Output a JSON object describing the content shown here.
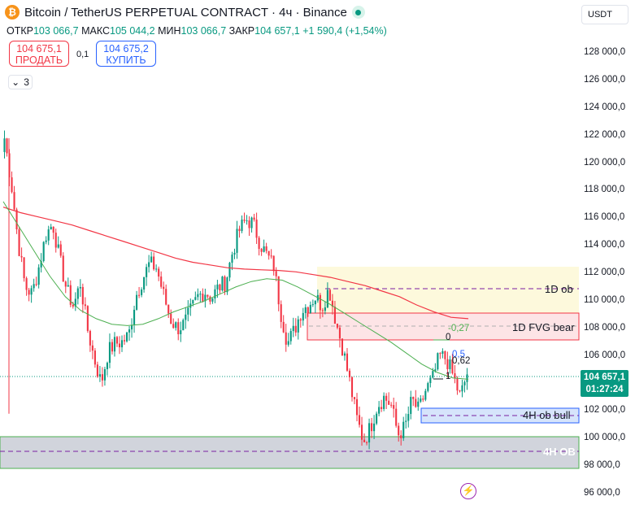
{
  "header": {
    "title": "Bitcoin / TetherUS PERPETUAL CONTRACT · 4ч · Binance",
    "coin_icon": "bitcoin-icon",
    "status_icon": "live-status-dot"
  },
  "ohlc": {
    "open_label": "ОТКР",
    "open": "103 066,7",
    "high_label": "МАКС",
    "high": "105 044,2",
    "low_label": "МИН",
    "low": "103 066,7",
    "close_label": "ЗАКР",
    "close": "104 657,1",
    "change": "+1 590,4 (+1,54%)"
  },
  "trade": {
    "sell_price": "104 675,1",
    "sell_label": "ПРОДАТЬ",
    "spread": "0,1",
    "buy_price": "104 675,2",
    "buy_label": "КУПИТЬ"
  },
  "indicators": {
    "count": "3"
  },
  "currency": {
    "selected": "USDT"
  },
  "price_axis": [
    "128 000,0",
    "126 000,0",
    "124 000,0",
    "122 000,0",
    "120 000,0",
    "118 000,0",
    "116 000,0",
    "114 000,0",
    "112 000,0",
    "110 000,0",
    "108 000,0",
    "106 000,0",
    "104 000,0",
    "102 000,0",
    "100 000,0",
    "98 000,0",
    "96 000,0"
  ],
  "price_axis_values": [
    128000,
    126000,
    124000,
    122000,
    120000,
    118000,
    116000,
    114000,
    112000,
    110000,
    108000,
    106000,
    104000,
    102000,
    100000,
    98000,
    96000
  ],
  "current_price": {
    "value": "104 657,1",
    "countdown": "01:27:24"
  },
  "zones": {
    "d1_ob": "1D ob",
    "fvg": "1D FVG bear",
    "h4_bull": "4H ob bull",
    "h4_ob": "4H OB"
  },
  "fib_labels": {
    "f0": "0",
    "f027": "-0,27",
    "f05": "0,5",
    "f062": "0,62",
    "f1": "1"
  },
  "colors": {
    "up": "#089981",
    "down": "#f23645",
    "ma_fast": "#4caf50",
    "ma_slow": "#f23645",
    "fvg_fill": "#fde4e6",
    "ob_fill": "#fdf9dc",
    "bull_fill": "#d6e4fb",
    "h4ob_fill": "#d1d4dc"
  },
  "chart_data": {
    "type": "candlestick",
    "symbol": "BTCUSDT.P",
    "timeframe": "4ч",
    "ylim": [
      95500,
      129500
    ],
    "close_path": [
      121800,
      118500,
      114200,
      111000,
      110500,
      112500,
      114800,
      115600,
      113000,
      110800,
      109600,
      111300,
      108000,
      105800,
      104000,
      106300,
      106900,
      107000,
      107500,
      110300,
      111600,
      112700,
      112400,
      110500,
      108700,
      108000,
      108300,
      109300,
      110300,
      110700,
      110200,
      111000,
      111300,
      113500,
      115100,
      115900,
      115600,
      114200,
      113300,
      112500,
      109200,
      106900,
      107900,
      109300,
      109700,
      110300,
      109600,
      110900,
      108500,
      106500,
      104100,
      101500,
      99800,
      100800,
      102400,
      103000,
      102400,
      100300,
      100800,
      102800,
      102000,
      103500,
      104300,
      106000,
      105800,
      104500,
      103000,
      104700
    ],
    "ma_fast_path": [
      117200,
      115400,
      113600,
      111800,
      110300,
      109300,
      108700,
      108300,
      108200,
      108300,
      108700,
      109200,
      109600,
      110000,
      110500,
      111000,
      111400,
      111600,
      111500,
      111000,
      110400,
      109800,
      109100,
      108400,
      107700,
      107000,
      106200,
      105400,
      104800,
      104400,
      104300
    ],
    "ma_slow_path": [
      116800,
      116400,
      116100,
      115800,
      115500,
      115100,
      114700,
      114300,
      113900,
      113500,
      113100,
      112800,
      112600,
      112400,
      112300,
      112250,
      112200,
      112100,
      111900,
      111700,
      111400,
      111100,
      110700,
      110300,
      109700,
      109200,
      108800,
      108700
    ]
  }
}
